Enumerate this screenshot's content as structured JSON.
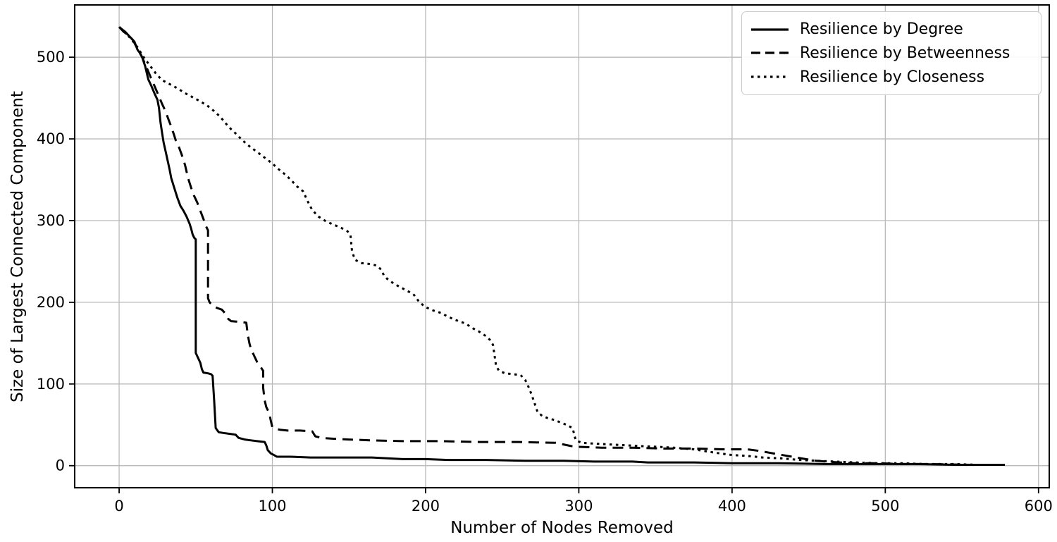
{
  "chart_data": {
    "type": "line",
    "title": "",
    "xlabel": "Number of Nodes Removed",
    "ylabel": "Size of Largest Connected Component",
    "x_ticks": [
      0,
      100,
      200,
      300,
      400,
      500,
      600
    ],
    "y_ticks": [
      0,
      100,
      200,
      300,
      400,
      500
    ],
    "xlim": [
      -29,
      607
    ],
    "ylim": [
      -27,
      564
    ],
    "grid": true,
    "legend_position": "upper right",
    "colors": {
      "line": "#000000",
      "grid": "#b9b9b9",
      "spine": "#000000",
      "legend_border": "#cccccc",
      "text": "#000000"
    },
    "series": [
      {
        "name": "Resilience by Degree",
        "line_style": "solid",
        "color": "#000000",
        "points": [
          [
            0,
            537
          ],
          [
            2,
            534
          ],
          [
            4,
            531
          ],
          [
            6,
            527
          ],
          [
            8,
            523
          ],
          [
            10,
            519
          ],
          [
            12,
            509
          ],
          [
            14,
            504
          ],
          [
            15,
            500
          ],
          [
            17,
            489
          ],
          [
            19,
            473
          ],
          [
            21,
            465
          ],
          [
            23,
            456
          ],
          [
            25,
            448
          ],
          [
            26,
            438
          ],
          [
            27,
            420
          ],
          [
            28,
            408
          ],
          [
            29,
            396
          ],
          [
            31,
            379
          ],
          [
            33,
            362
          ],
          [
            34,
            352
          ],
          [
            36,
            340
          ],
          [
            38,
            328
          ],
          [
            40,
            318
          ],
          [
            42,
            312
          ],
          [
            44,
            305
          ],
          [
            46,
            296
          ],
          [
            47,
            290
          ],
          [
            48,
            283
          ],
          [
            49,
            279
          ],
          [
            50,
            277
          ],
          [
            50,
            138
          ],
          [
            52,
            130
          ],
          [
            53,
            126
          ],
          [
            54,
            118
          ],
          [
            55,
            114
          ],
          [
            58,
            113
          ],
          [
            60,
            112
          ],
          [
            61,
            110
          ],
          [
            62,
            80
          ],
          [
            63,
            46
          ],
          [
            65,
            41
          ],
          [
            68,
            40
          ],
          [
            72,
            39
          ],
          [
            76,
            38
          ],
          [
            78,
            34
          ],
          [
            82,
            32
          ],
          [
            86,
            31
          ],
          [
            90,
            30
          ],
          [
            95,
            29
          ],
          [
            96,
            25
          ],
          [
            97,
            19
          ],
          [
            99,
            15
          ],
          [
            101,
            13
          ],
          [
            103,
            11
          ],
          [
            112,
            11
          ],
          [
            125,
            10
          ],
          [
            145,
            10
          ],
          [
            165,
            10
          ],
          [
            175,
            9
          ],
          [
            185,
            8
          ],
          [
            200,
            8
          ],
          [
            215,
            7
          ],
          [
            240,
            7
          ],
          [
            265,
            6
          ],
          [
            290,
            6
          ],
          [
            310,
            5
          ],
          [
            335,
            5
          ],
          [
            345,
            4
          ],
          [
            375,
            4
          ],
          [
            400,
            3
          ],
          [
            430,
            3
          ],
          [
            460,
            2
          ],
          [
            490,
            2
          ],
          [
            520,
            2
          ],
          [
            545,
            1
          ],
          [
            578,
            1
          ]
        ]
      },
      {
        "name": "Resilience by Betweenness",
        "line_style": "dashed",
        "color": "#000000",
        "points": [
          [
            0,
            537
          ],
          [
            3,
            531
          ],
          [
            6,
            527
          ],
          [
            9,
            521
          ],
          [
            12,
            510
          ],
          [
            15,
            500
          ],
          [
            18,
            487
          ],
          [
            20,
            478
          ],
          [
            23,
            465
          ],
          [
            26,
            452
          ],
          [
            28,
            443
          ],
          [
            30,
            435
          ],
          [
            32,
            425
          ],
          [
            34,
            415
          ],
          [
            36,
            404
          ],
          [
            37,
            398
          ],
          [
            39,
            390
          ],
          [
            41,
            380
          ],
          [
            43,
            368
          ],
          [
            45,
            352
          ],
          [
            47,
            340
          ],
          [
            49,
            330
          ],
          [
            51,
            322
          ],
          [
            53,
            312
          ],
          [
            55,
            302
          ],
          [
            57,
            292
          ],
          [
            58,
            288
          ],
          [
            58,
            205
          ],
          [
            59,
            200
          ],
          [
            61,
            196
          ],
          [
            64,
            193
          ],
          [
            67,
            191
          ],
          [
            69,
            187
          ],
          [
            71,
            180
          ],
          [
            73,
            177
          ],
          [
            79,
            176
          ],
          [
            83,
            175
          ],
          [
            84,
            160
          ],
          [
            85,
            150
          ],
          [
            86,
            143
          ],
          [
            88,
            135
          ],
          [
            90,
            127
          ],
          [
            92,
            122
          ],
          [
            94,
            116
          ],
          [
            94,
            95
          ],
          [
            95,
            80
          ],
          [
            96,
            72
          ],
          [
            97,
            68
          ],
          [
            98,
            64
          ],
          [
            99,
            55
          ],
          [
            100,
            47
          ],
          [
            102,
            45
          ],
          [
            105,
            44
          ],
          [
            110,
            43
          ],
          [
            118,
            43
          ],
          [
            126,
            42
          ],
          [
            128,
            36
          ],
          [
            132,
            34
          ],
          [
            140,
            33
          ],
          [
            150,
            32
          ],
          [
            165,
            31
          ],
          [
            185,
            30
          ],
          [
            210,
            30
          ],
          [
            235,
            29
          ],
          [
            260,
            29
          ],
          [
            285,
            28
          ],
          [
            290,
            26
          ],
          [
            295,
            24
          ],
          [
            300,
            23
          ],
          [
            315,
            22
          ],
          [
            335,
            22
          ],
          [
            355,
            21
          ],
          [
            375,
            21
          ],
          [
            395,
            20
          ],
          [
            410,
            20
          ],
          [
            418,
            18
          ],
          [
            424,
            16
          ],
          [
            430,
            14
          ],
          [
            436,
            12
          ],
          [
            442,
            10
          ],
          [
            448,
            8
          ],
          [
            455,
            6
          ],
          [
            462,
            5
          ],
          [
            470,
            4
          ],
          [
            480,
            3
          ],
          [
            495,
            3
          ],
          [
            510,
            2
          ],
          [
            530,
            2
          ],
          [
            555,
            1
          ],
          [
            578,
            1
          ]
        ]
      },
      {
        "name": "Resilience by Closeness",
        "line_style": "dotted",
        "color": "#000000",
        "points": [
          [
            0,
            537
          ],
          [
            4,
            530
          ],
          [
            8,
            522
          ],
          [
            12,
            512
          ],
          [
            15,
            503
          ],
          [
            16,
            500
          ],
          [
            20,
            490
          ],
          [
            24,
            480
          ],
          [
            28,
            472
          ],
          [
            33,
            467
          ],
          [
            38,
            462
          ],
          [
            43,
            456
          ],
          [
            48,
            451
          ],
          [
            53,
            446
          ],
          [
            58,
            440
          ],
          [
            62,
            434
          ],
          [
            66,
            427
          ],
          [
            70,
            418
          ],
          [
            73,
            412
          ],
          [
            77,
            405
          ],
          [
            80,
            399
          ],
          [
            85,
            391
          ],
          [
            90,
            384
          ],
          [
            95,
            377
          ],
          [
            100,
            370
          ],
          [
            104,
            363
          ],
          [
            108,
            357
          ],
          [
            112,
            350
          ],
          [
            116,
            342
          ],
          [
            120,
            336
          ],
          [
            124,
            320
          ],
          [
            126,
            313
          ],
          [
            130,
            305
          ],
          [
            135,
            299
          ],
          [
            140,
            295
          ],
          [
            145,
            291
          ],
          [
            149,
            287
          ],
          [
            151,
            282
          ],
          [
            152,
            262
          ],
          [
            154,
            252
          ],
          [
            158,
            248
          ],
          [
            163,
            247
          ],
          [
            168,
            245
          ],
          [
            171,
            240
          ],
          [
            173,
            232
          ],
          [
            176,
            227
          ],
          [
            180,
            222
          ],
          [
            184,
            218
          ],
          [
            188,
            214
          ],
          [
            192,
            210
          ],
          [
            196,
            200
          ],
          [
            200,
            194
          ],
          [
            205,
            190
          ],
          [
            210,
            187
          ],
          [
            215,
            182
          ],
          [
            220,
            178
          ],
          [
            226,
            174
          ],
          [
            231,
            168
          ],
          [
            235,
            164
          ],
          [
            239,
            159
          ],
          [
            242,
            154
          ],
          [
            244,
            148
          ],
          [
            245,
            135
          ],
          [
            246,
            122
          ],
          [
            248,
            116
          ],
          [
            252,
            113
          ],
          [
            257,
            112
          ],
          [
            262,
            111
          ],
          [
            265,
            105
          ],
          [
            267,
            97
          ],
          [
            269,
            88
          ],
          [
            271,
            77
          ],
          [
            273,
            66
          ],
          [
            276,
            61
          ],
          [
            280,
            58
          ],
          [
            284,
            56
          ],
          [
            288,
            53
          ],
          [
            292,
            50
          ],
          [
            296,
            46
          ],
          [
            297,
            38
          ],
          [
            298,
            31
          ],
          [
            302,
            28
          ],
          [
            310,
            27
          ],
          [
            320,
            26
          ],
          [
            330,
            25
          ],
          [
            340,
            24
          ],
          [
            352,
            23
          ],
          [
            362,
            22
          ],
          [
            375,
            20
          ],
          [
            385,
            17
          ],
          [
            392,
            15
          ],
          [
            400,
            13
          ],
          [
            410,
            12
          ],
          [
            420,
            10
          ],
          [
            432,
            9
          ],
          [
            444,
            7
          ],
          [
            456,
            6
          ],
          [
            468,
            5
          ],
          [
            480,
            4
          ],
          [
            495,
            3
          ],
          [
            510,
            3
          ],
          [
            525,
            2
          ],
          [
            545,
            2
          ],
          [
            560,
            1
          ],
          [
            578,
            1
          ]
        ]
      }
    ]
  }
}
